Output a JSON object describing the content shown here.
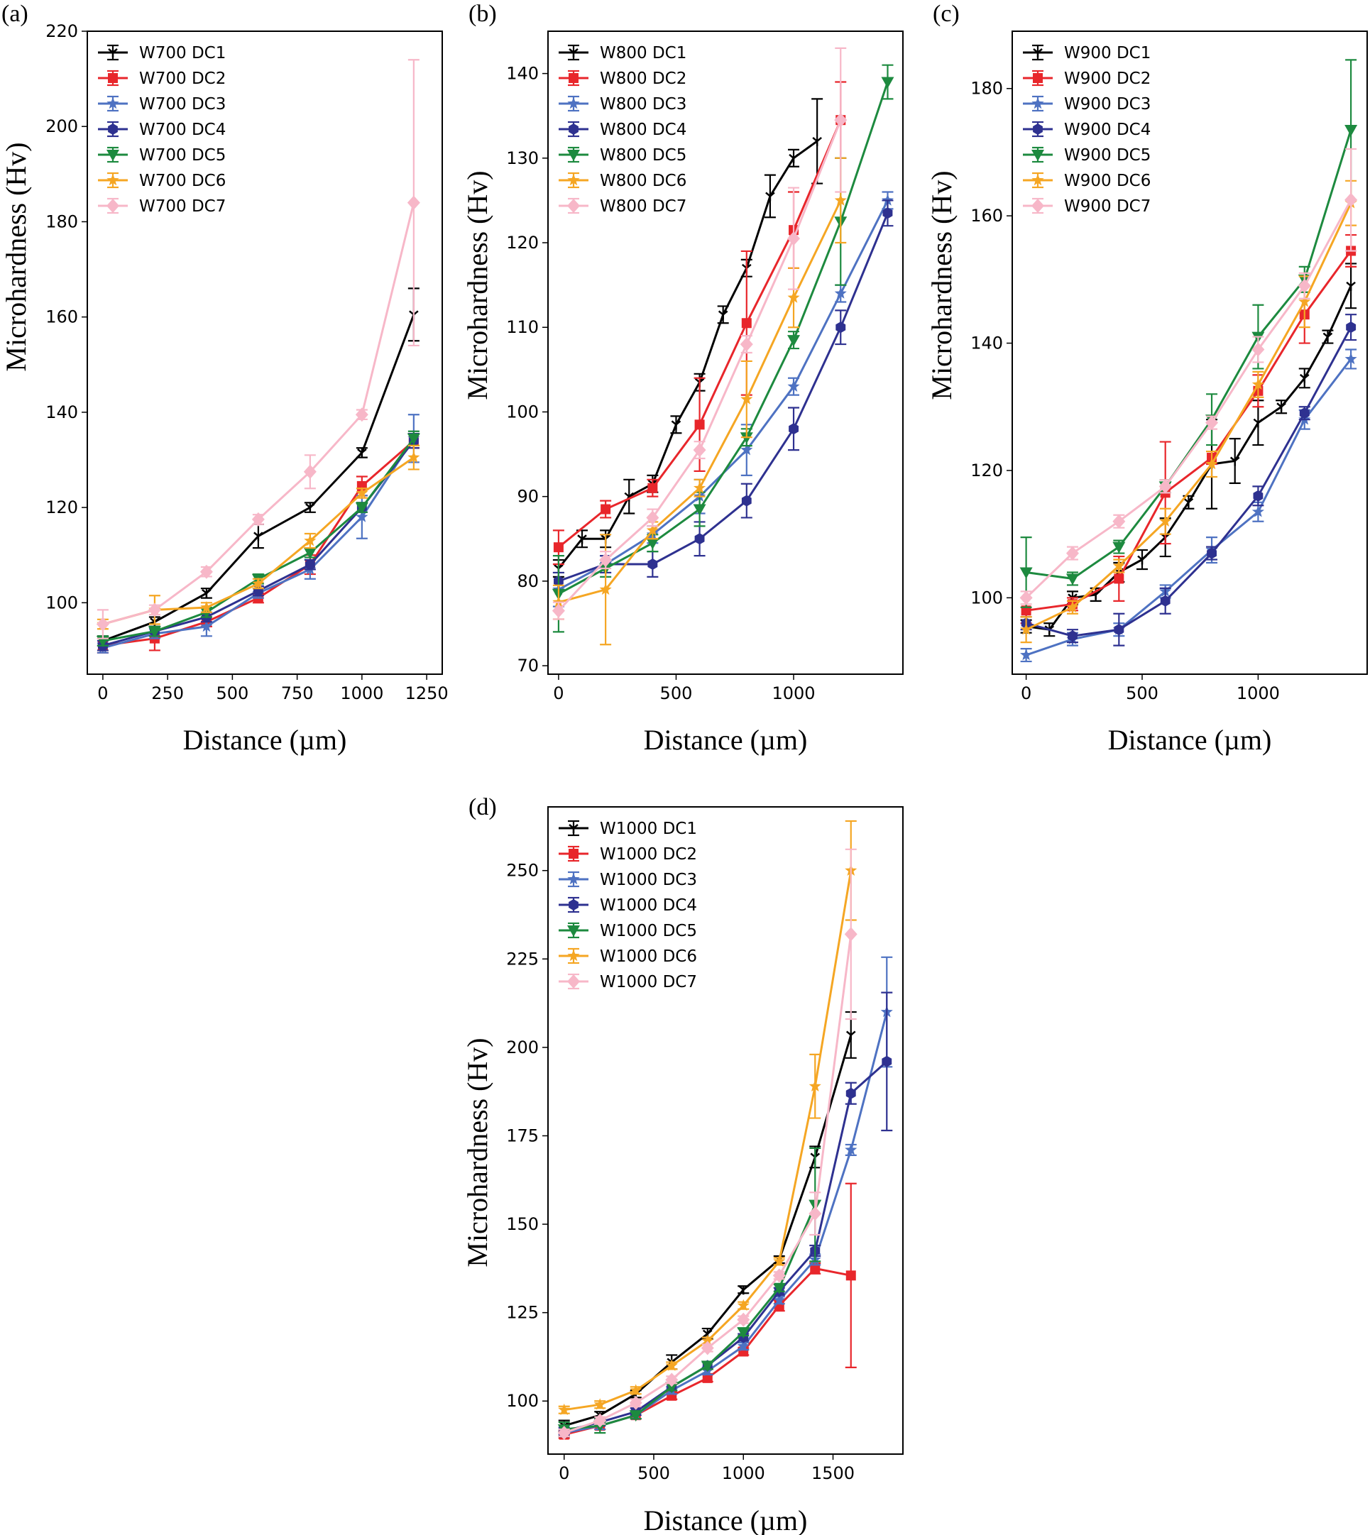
{
  "figure": {
    "x_label": "Distance (µm)",
    "y_label": "Microhardness (Hv)"
  },
  "series_colors": {
    "DC1": "#000000",
    "DC2": "#e8262b",
    "DC3": "#4e72c2",
    "DC4": "#2e3190",
    "DC5": "#1d8a3f",
    "DC6": "#f5a623",
    "DC7": "#f7b7c8"
  },
  "chart_data": [
    {
      "type": "line",
      "panel": "(a)",
      "xlabel": "Distance (µm)",
      "ylabel": "Microhardness (Hv)",
      "xlim": [
        -60,
        1310
      ],
      "ylim": [
        85,
        220
      ],
      "xticks": [
        0,
        250,
        500,
        750,
        1000,
        1250
      ],
      "yticks": [
        100,
        120,
        140,
        160,
        180,
        200,
        220
      ],
      "legend": "top-left",
      "series": [
        {
          "name": "W700 DC1",
          "key": "DC1",
          "x": [
            0,
            200,
            400,
            600,
            800,
            1000,
            1200
          ],
          "values": [
            92,
            96,
            102,
            114,
            120,
            131.5,
            160.5
          ],
          "err": [
            1,
            1,
            1,
            2.5,
            1,
            1,
            5.5
          ]
        },
        {
          "name": "W700 DC2",
          "key": "DC2",
          "x": [
            0,
            200,
            400,
            600,
            800,
            1000,
            1200
          ],
          "values": [
            91,
            92.5,
            96,
            101,
            108,
            124.5,
            134
          ],
          "err": [
            1.5,
            2.5,
            1,
            1,
            2,
            2,
            1.5
          ]
        },
        {
          "name": "W700 DC3",
          "key": "DC3",
          "x": [
            0,
            200,
            400,
            600,
            800,
            1000,
            1200
          ],
          "values": [
            90.5,
            93.5,
            95,
            102,
            107,
            118,
            134.5
          ],
          "err": [
            1,
            1,
            2,
            1,
            2,
            4.5,
            5
          ]
        },
        {
          "name": "W700 DC4",
          "key": "DC4",
          "x": [
            0,
            200,
            400,
            600,
            800,
            1000,
            1200
          ],
          "values": [
            91,
            94,
            97,
            102.5,
            108,
            120,
            134
          ],
          "err": [
            1,
            1,
            1,
            1,
            1,
            1,
            1.5
          ]
        },
        {
          "name": "W700 DC5",
          "key": "DC5",
          "x": [
            0,
            200,
            400,
            600,
            800,
            1000,
            1200
          ],
          "values": [
            92,
            94,
            98,
            105,
            110.5,
            120,
            134.5
          ],
          "err": [
            1,
            1,
            1,
            1,
            1,
            1,
            1.5
          ]
        },
        {
          "name": "W700 DC6",
          "key": "DC6",
          "x": [
            0,
            200,
            400,
            600,
            800,
            1000,
            1200
          ],
          "values": [
            95.5,
            98.5,
            99,
            104,
            113,
            123,
            130.5
          ],
          "err": [
            1,
            3,
            1,
            1,
            1.5,
            1,
            2.5
          ]
        },
        {
          "name": "W700 DC7",
          "key": "DC7",
          "x": [
            0,
            200,
            400,
            600,
            800,
            1000,
            1200
          ],
          "values": [
            95.5,
            98.5,
            106.5,
            117.5,
            127.5,
            139.5,
            184
          ],
          "err": [
            3,
            1,
            1,
            1,
            3.5,
            1,
            30
          ]
        }
      ]
    },
    {
      "type": "line",
      "panel": "(b)",
      "xlabel": "Distance (µm)",
      "ylabel": "Microhardness (Hv)",
      "xlim": [
        -45,
        1465
      ],
      "ylim": [
        69,
        145
      ],
      "xticks": [
        0,
        500,
        1000
      ],
      "yticks": [
        70,
        80,
        90,
        100,
        110,
        120,
        130,
        140
      ],
      "legend": "top-left",
      "series": [
        {
          "name": "W800 DC1",
          "key": "DC1",
          "x": [
            0,
            100,
            200,
            300,
            400,
            500,
            600,
            700,
            800,
            900,
            1000,
            1100
          ],
          "values": [
            81.5,
            85,
            85,
            90,
            91.5,
            98.5,
            103.5,
            111.5,
            117,
            125.5,
            130,
            132
          ],
          "err": [
            1,
            1,
            1,
            2,
            1,
            1,
            1,
            1,
            1,
            2.5,
            1,
            5
          ]
        },
        {
          "name": "W800 DC2",
          "key": "DC2",
          "x": [
            0,
            200,
            400,
            600,
            800,
            1000,
            1200
          ],
          "values": [
            84,
            88.5,
            91,
            98.5,
            110.5,
            121.5,
            134.5
          ],
          "err": [
            2,
            1,
            1,
            5.5,
            8.5,
            4.5,
            4.5
          ]
        },
        {
          "name": "W800 DC3",
          "key": "DC3",
          "x": [
            0,
            200,
            400,
            600,
            800,
            1000,
            1200,
            1400
          ],
          "values": [
            79,
            82,
            85.5,
            90,
            95.5,
            103,
            114,
            125
          ],
          "err": [
            2,
            1,
            1,
            2,
            3,
            1,
            1,
            1
          ]
        },
        {
          "name": "W800 DC4",
          "key": "DC4",
          "x": [
            0,
            200,
            400,
            600,
            800,
            1000,
            1200,
            1400
          ],
          "values": [
            80,
            82,
            82,
            85,
            89.5,
            98,
            110,
            123.5
          ],
          "err": [
            1,
            1,
            1.5,
            2,
            2,
            2.5,
            2,
            1.5
          ]
        },
        {
          "name": "W800 DC5",
          "key": "DC5",
          "x": [
            0,
            200,
            400,
            600,
            800,
            1000,
            1200,
            1400
          ],
          "values": [
            78.5,
            81.5,
            84.5,
            88.5,
            97,
            108.5,
            122.5,
            139
          ],
          "err": [
            4.5,
            1,
            1,
            2,
            1,
            1,
            7.5,
            2
          ]
        },
        {
          "name": "W800 DC6",
          "key": "DC6",
          "x": [
            0,
            200,
            400,
            600,
            800,
            1000,
            1200
          ],
          "values": [
            77.5,
            79,
            86,
            91,
            101.5,
            113.5,
            125
          ],
          "err": [
            2,
            6.5,
            1,
            1,
            4.5,
            3.5,
            5
          ]
        },
        {
          "name": "W800 DC7",
          "key": "DC7",
          "x": [
            0,
            200,
            400,
            600,
            800,
            1000,
            1200
          ],
          "values": [
            76.5,
            82.5,
            87.5,
            95.5,
            108,
            120.5,
            134.5
          ],
          "err": [
            1,
            1,
            1,
            1,
            1,
            6,
            8.5
          ]
        }
      ]
    },
    {
      "type": "line",
      "panel": "(c)",
      "xlabel": "Distance (µm)",
      "ylabel": "Microhardness (Hv)",
      "xlim": [
        -60,
        1470
      ],
      "ylim": [
        88,
        189
      ],
      "xticks": [
        0,
        500,
        1000
      ],
      "yticks": [
        100,
        120,
        140,
        160,
        180
      ],
      "legend": "top-left",
      "series": [
        {
          "name": "W900 DC1",
          "key": "DC1",
          "x": [
            0,
            100,
            200,
            300,
            400,
            500,
            600,
            700,
            800,
            900,
            1000,
            1100,
            1200,
            1300,
            1400
          ],
          "values": [
            95.5,
            95,
            100,
            100.5,
            104,
            106,
            109.5,
            115,
            121,
            121.5,
            127.5,
            130,
            134.5,
            141,
            149
          ],
          "err": [
            1,
            1,
            1,
            1,
            1.5,
            1.5,
            3,
            1,
            7,
            3.5,
            3.5,
            1,
            1.5,
            1,
            3.5
          ]
        },
        {
          "name": "W900 DC2",
          "key": "DC2",
          "x": [
            0,
            200,
            400,
            600,
            800,
            1000,
            1200,
            1400
          ],
          "values": [
            98,
            99,
            103,
            116.5,
            122,
            132.5,
            144.5,
            154.5
          ],
          "err": [
            2,
            1,
            3.5,
            8,
            1,
            2.5,
            4.5,
            2.5
          ]
        },
        {
          "name": "W900 DC3",
          "key": "DC3",
          "x": [
            0,
            200,
            400,
            600,
            800,
            1000,
            1200,
            1400
          ],
          "values": [
            91,
            93.5,
            95,
            101,
            107.5,
            113.5,
            128,
            137.5
          ],
          "err": [
            1,
            1,
            1,
            1,
            2,
            1.5,
            1.5,
            1.5
          ]
        },
        {
          "name": "W900 DC4",
          "key": "DC4",
          "x": [
            0,
            200,
            400,
            600,
            800,
            1000,
            1200,
            1400
          ],
          "values": [
            96,
            94,
            95,
            99.5,
            107,
            116,
            129,
            142.5
          ],
          "err": [
            1,
            1,
            2.5,
            2,
            1,
            1.5,
            1,
            2
          ]
        },
        {
          "name": "W900 DC5",
          "key": "DC5",
          "x": [
            0,
            200,
            400,
            600,
            800,
            1000,
            1200,
            1400
          ],
          "values": [
            104,
            103,
            108,
            117.5,
            128,
            141,
            150,
            173.5
          ],
          "err": [
            5.5,
            1,
            1,
            1,
            4,
            5,
            2,
            11
          ]
        },
        {
          "name": "W900 DC6",
          "key": "DC6",
          "x": [
            0,
            200,
            400,
            600,
            800,
            1000,
            1200,
            1400
          ],
          "values": [
            95,
            98.5,
            105,
            112,
            121,
            133.5,
            146.5,
            162
          ],
          "err": [
            2,
            1,
            1,
            2,
            2,
            2,
            4,
            3.5
          ]
        },
        {
          "name": "W900 DC7",
          "key": "DC7",
          "x": [
            0,
            200,
            400,
            600,
            800,
            1000,
            1200,
            1400
          ],
          "values": [
            100,
            107,
            112,
            117.5,
            127.5,
            139,
            149,
            162.5
          ],
          "err": [
            1,
            1,
            1,
            1,
            1,
            2,
            2,
            8
          ]
        }
      ]
    },
    {
      "type": "line",
      "panel": "(d)",
      "xlabel": "Distance (µm)",
      "ylabel": "Microhardness (Hv)",
      "xlim": [
        -90,
        1890
      ],
      "ylim": [
        85,
        268
      ],
      "xticks": [
        0,
        500,
        1000,
        1500
      ],
      "yticks": [
        100,
        125,
        150,
        175,
        200,
        225,
        250
      ],
      "legend": "top-left",
      "series": [
        {
          "name": "W1000 DC1",
          "key": "DC1",
          "x": [
            0,
            200,
            400,
            600,
            800,
            1000,
            1200,
            1400,
            1600
          ],
          "values": [
            93,
            96,
            102,
            111,
            119,
            131.5,
            140,
            169,
            203.5
          ],
          "err": [
            1.5,
            1,
            1,
            2,
            1.5,
            1,
            1,
            3,
            6.5
          ]
        },
        {
          "name": "W1000 DC2",
          "key": "DC2",
          "x": [
            0,
            200,
            400,
            600,
            800,
            1000,
            1200,
            1400,
            1600
          ],
          "values": [
            90.5,
            93,
            96,
            101.5,
            106.5,
            114,
            127,
            137.5,
            135.5
          ],
          "err": [
            1,
            1,
            1,
            1,
            1,
            1,
            1.5,
            1.5,
            26
          ]
        },
        {
          "name": "W1000 DC3",
          "key": "DC3",
          "x": [
            0,
            200,
            400,
            600,
            800,
            1000,
            1200,
            1400,
            1600,
            1800
          ],
          "values": [
            91,
            93,
            96,
            103,
            108.5,
            115.5,
            128.5,
            140,
            171,
            210
          ],
          "err": [
            1,
            1,
            1,
            1,
            1,
            1,
            1,
            1.5,
            1.5,
            15.5
          ]
        },
        {
          "name": "W1000 DC4",
          "key": "DC4",
          "x": [
            0,
            200,
            400,
            600,
            800,
            1000,
            1200,
            1400,
            1600,
            1800
          ],
          "values": [
            91.5,
            94,
            97,
            104,
            110,
            118,
            131,
            142.5,
            187,
            196
          ],
          "err": [
            1,
            1,
            1,
            1,
            1,
            1,
            1,
            1.5,
            3,
            19.5
          ]
        },
        {
          "name": "W1000 DC5",
          "key": "DC5",
          "x": [
            0,
            200,
            400,
            600,
            800,
            1000,
            1200,
            1400
          ],
          "values": [
            92,
            93,
            96,
            104,
            110,
            119.5,
            132,
            155.5
          ],
          "err": [
            2,
            2,
            1,
            1,
            1,
            1,
            1,
            16
          ]
        },
        {
          "name": "W1000 DC6",
          "key": "DC6",
          "x": [
            0,
            200,
            400,
            600,
            800,
            1000,
            1200,
            1400,
            1600
          ],
          "values": [
            97.5,
            99,
            103,
            110,
            117,
            127,
            139.5,
            189,
            250
          ],
          "err": [
            1,
            1,
            1,
            1,
            1,
            1,
            1,
            9,
            14
          ]
        },
        {
          "name": "W1000 DC7",
          "key": "DC7",
          "x": [
            0,
            200,
            400,
            600,
            800,
            1000,
            1200,
            1400,
            1600
          ],
          "values": [
            91,
            94.5,
            99.5,
            106,
            115,
            123,
            135.5,
            153,
            232
          ],
          "err": [
            1,
            1,
            1,
            1,
            1,
            1,
            1,
            6,
            24
          ]
        }
      ]
    }
  ]
}
